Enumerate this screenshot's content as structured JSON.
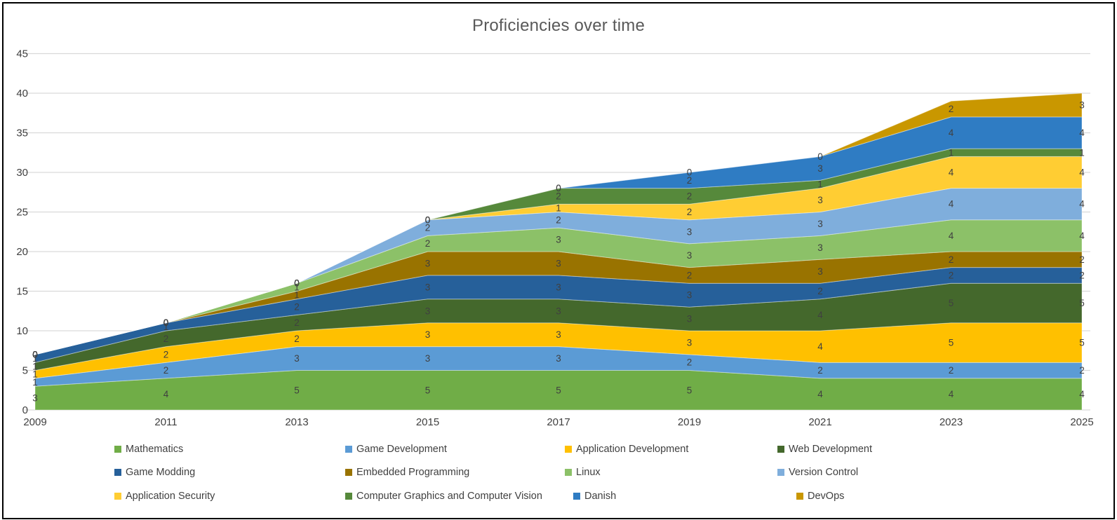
{
  "window": {
    "background": "#FFFFFF",
    "border_color": "#000000"
  },
  "chart_data": {
    "type": "area",
    "stacked": true,
    "title": "Proficiencies over time",
    "categories": [
      "2009",
      "2011",
      "2013",
      "2015",
      "2017",
      "2019",
      "2021",
      "2023",
      "2025"
    ],
    "series": [
      {
        "name": "Mathematics",
        "color": "#70AD47",
        "values": [
          3,
          4,
          5,
          5,
          5,
          5,
          4,
          4,
          4
        ]
      },
      {
        "name": "Game Development",
        "color": "#5B9BD5",
        "values": [
          1,
          2,
          3,
          3,
          3,
          2,
          2,
          2,
          2
        ]
      },
      {
        "name": "Application Development",
        "color": "#FFC000",
        "values": [
          1,
          2,
          2,
          3,
          3,
          3,
          4,
          5,
          5
        ]
      },
      {
        "name": "Web Development",
        "color": "#44682C",
        "values": [
          1,
          2,
          2,
          3,
          3,
          3,
          4,
          5,
          5
        ]
      },
      {
        "name": "Game Modding",
        "color": "#26609A",
        "values": [
          1,
          1,
          2,
          3,
          3,
          3,
          2,
          2,
          2
        ]
      },
      {
        "name": "Embedded Programming",
        "color": "#997300",
        "values": [
          0,
          0,
          1,
          3,
          3,
          2,
          3,
          2,
          2
        ]
      },
      {
        "name": "Linux",
        "color": "#8CC168",
        "values": [
          0,
          0,
          1,
          2,
          3,
          3,
          3,
          4,
          4
        ]
      },
      {
        "name": "Version Control",
        "color": "#7FAEDC",
        "values": [
          0,
          0,
          0,
          2,
          2,
          3,
          3,
          4,
          4
        ]
      },
      {
        "name": "Application Security",
        "color": "#FFCD33",
        "values": [
          0,
          0,
          0,
          0,
          1,
          2,
          3,
          4,
          4
        ]
      },
      {
        "name": "Computer Graphics and Computer Vision",
        "color": "#56893B",
        "values": [
          0,
          0,
          0,
          0,
          2,
          2,
          1,
          1,
          1
        ]
      },
      {
        "name": "Danish",
        "color": "#2F7CC3",
        "values": [
          0,
          0,
          0,
          0,
          0,
          2,
          3,
          4,
          4
        ]
      },
      {
        "name": "DevOps",
        "color": "#C99700",
        "values": [
          0,
          0,
          0,
          0,
          0,
          0,
          0,
          2,
          3
        ]
      }
    ],
    "ylim": [
      0,
      45
    ],
    "yticks": [
      0,
      5,
      10,
      15,
      20,
      25,
      30,
      35,
      40,
      45
    ],
    "grid": true,
    "gridline_color": "#D9D9D9",
    "axis_label_color": "#404040",
    "data_label_color": "#404040",
    "title_color": "#595959",
    "legend_position": "bottom",
    "data_labels": true
  }
}
